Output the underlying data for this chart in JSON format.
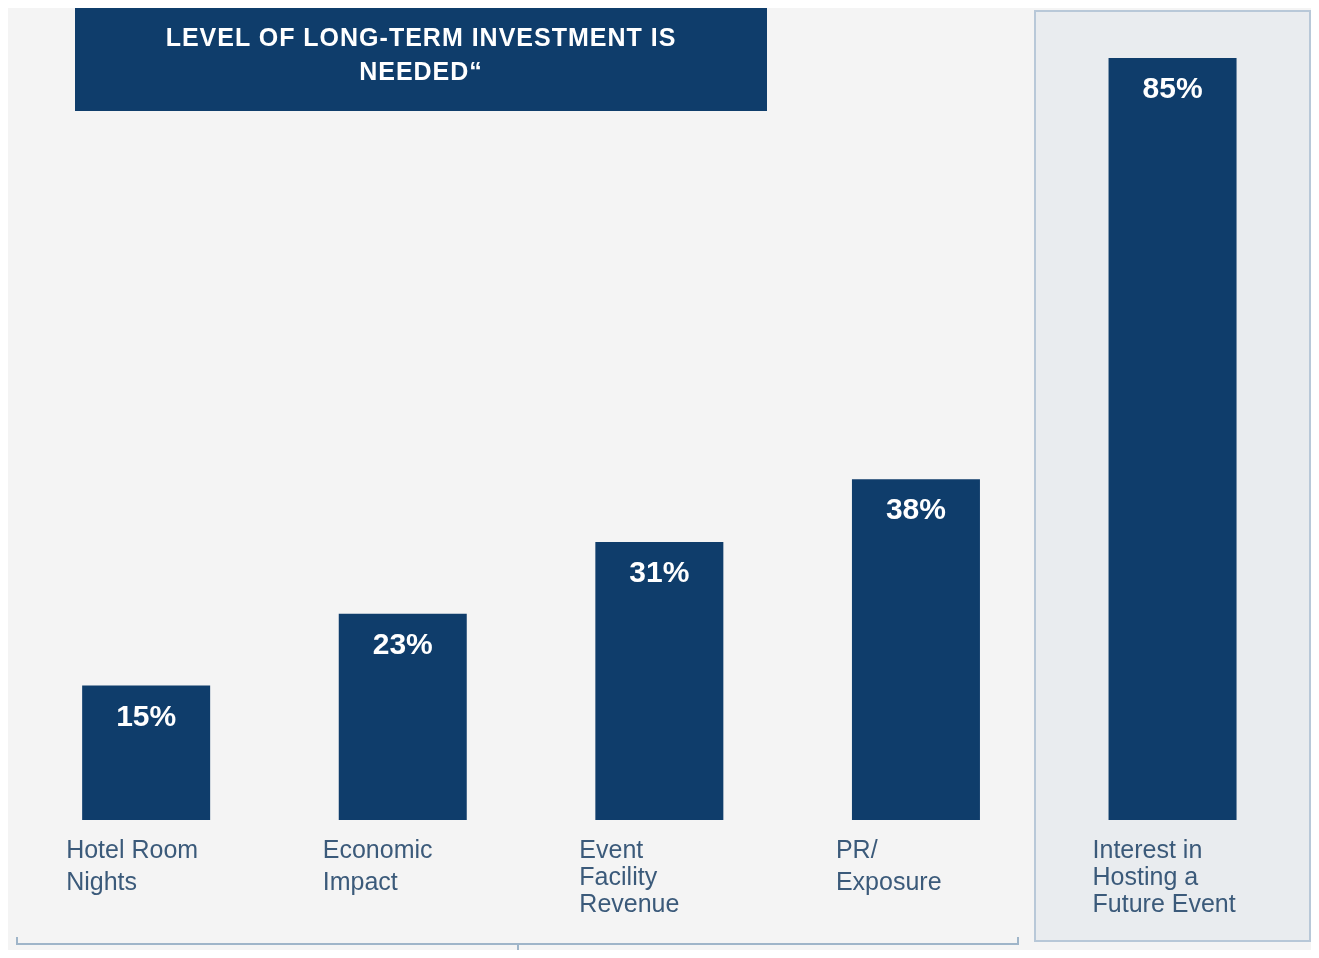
{
  "chart_data": {
    "type": "bar",
    "title": "LEVEL  OF LONG-TERM INVESTMENT IS NEEDED“",
    "categories": [
      "Hotel Room Nights",
      "Economic Impact",
      "Event Facility Revenue",
      "PR/ Exposure",
      "Interest in Hosting a Future Event"
    ],
    "values": [
      15,
      23,
      31,
      38,
      85
    ],
    "value_labels": [
      "15%",
      "23%",
      "31%",
      "38%",
      "85%"
    ],
    "color": "#0f3d6b"
  }
}
